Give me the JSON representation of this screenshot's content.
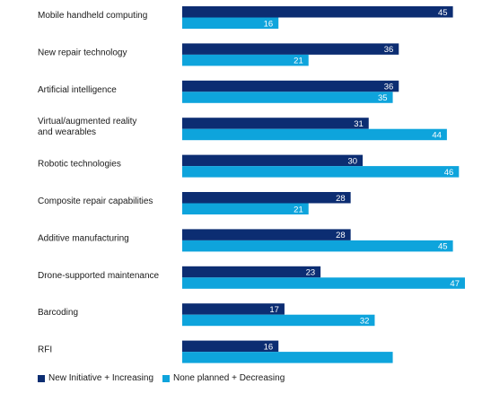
{
  "chart_data": {
    "type": "bar",
    "orientation": "horizontal",
    "categories": [
      [
        "Mobile handheld computing"
      ],
      [
        "New repair technology"
      ],
      [
        "Artificial intelligence"
      ],
      [
        "Virtual/augmented reality",
        "and wearables"
      ],
      [
        "Robotic technologies"
      ],
      [
        "Composite repair capabilities"
      ],
      [
        "Additive manufacturing"
      ],
      [
        "Drone-supported maintenance"
      ],
      [
        "Barcoding"
      ],
      [
        "RFI"
      ]
    ],
    "series": [
      {
        "name": "New Initiative + Increasing",
        "color": "#0c2d72",
        "values": [
          45,
          36,
          36,
          31,
          30,
          28,
          28,
          23,
          17,
          16
        ],
        "labels": [
          "45",
          "36",
          "36",
          "31",
          "30",
          "28",
          "28",
          "23",
          "17",
          "16"
        ]
      },
      {
        "name": "None planned + Decreasing",
        "color": "#0ea4dc",
        "values": [
          16,
          21,
          35,
          44,
          46,
          21,
          45,
          47,
          32,
          35
        ],
        "labels": [
          "16",
          "21",
          "35",
          "44",
          "46",
          "21",
          "45",
          "47",
          "32",
          ""
        ]
      }
    ],
    "xlim": [
      0,
      47
    ],
    "grid": false,
    "legend_position": "bottom-left"
  }
}
